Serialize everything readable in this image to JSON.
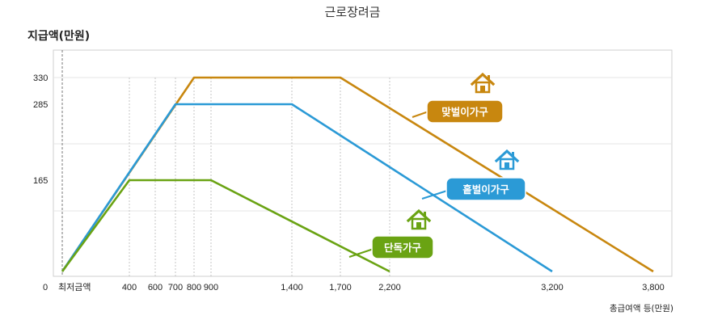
{
  "chart_data": {
    "type": "line",
    "title": "근로장려금",
    "ylabel": "지급액(만원)",
    "xlabel": "총급여액 등(만원)",
    "x_min_label": "최저금액",
    "y_zero_label": "0",
    "x_ticks": [
      400,
      600,
      700,
      800,
      900,
      1400,
      1700,
      2200,
      3200,
      3800
    ],
    "x_tick_labels": [
      "400",
      "600",
      "700",
      "800",
      "900",
      "1,400",
      "1,700",
      "2,200",
      "3,200",
      "3,800"
    ],
    "y_ticks": [
      165,
      285,
      330
    ],
    "y_tick_labels": [
      "165",
      "285",
      "330"
    ],
    "xlim": [
      0,
      3900
    ],
    "ylim": [
      0,
      375
    ],
    "grid": true,
    "series": [
      {
        "name": "맞벌이가구",
        "color": "#c8870f",
        "x": [
          0,
          800,
          1700,
          3800
        ],
        "y": [
          0,
          330,
          330,
          0
        ]
      },
      {
        "name": "홑벌이가구",
        "color": "#2b9ad6",
        "x": [
          0,
          700,
          1400,
          3200
        ],
        "y": [
          0,
          285,
          285,
          0
        ]
      },
      {
        "name": "단독가구",
        "color": "#6aa313",
        "x": [
          0,
          400,
          900,
          2200
        ],
        "y": [
          0,
          165,
          165,
          0
        ]
      }
    ]
  }
}
